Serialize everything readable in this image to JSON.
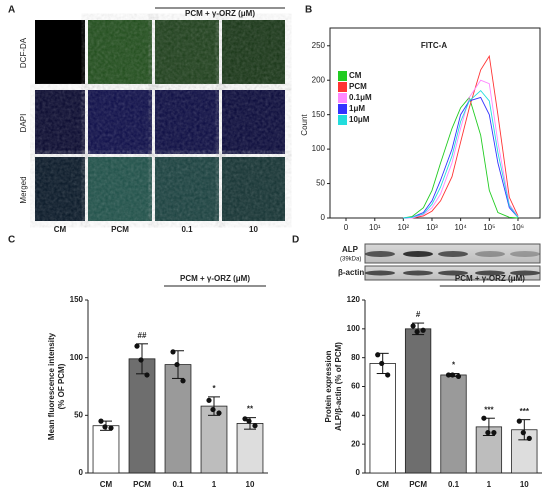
{
  "panels": {
    "labels": [
      "A",
      "B",
      "C",
      "D"
    ]
  },
  "image_panel": {
    "header": "PCM + γ-ORZ (μM)",
    "rows": [
      "DCF-DA",
      "DAPI",
      "Merged"
    ],
    "columns": [
      "CM",
      "PCM",
      "0.1",
      "10"
    ]
  },
  "blot": {
    "rows": [
      {
        "label": "ALP",
        "sublabel": "(39kDa)"
      },
      {
        "label": "β-actin"
      }
    ]
  },
  "chart_data": [
    {
      "type": "line",
      "title": "FITC-A",
      "ylabel": "Count",
      "xscale": "asinh",
      "x": [
        100,
        200,
        500,
        1000,
        2000,
        5000,
        10000,
        20000,
        50000,
        100000,
        200000,
        500000,
        1000000
      ],
      "series": [
        {
          "name": "CM",
          "color": "#22cc22",
          "values": [
            0,
            2,
            15,
            40,
            80,
            130,
            160,
            175,
            120,
            40,
            8,
            1,
            0
          ]
        },
        {
          "name": "PCM",
          "color": "#ff3333",
          "values": [
            0,
            0,
            3,
            10,
            25,
            60,
            110,
            160,
            215,
            235,
            150,
            30,
            3
          ]
        },
        {
          "name": "0.1μM",
          "color": "#ff88ff",
          "values": [
            0,
            0,
            5,
            15,
            35,
            80,
            130,
            175,
            200,
            195,
            110,
            20,
            2
          ]
        },
        {
          "name": "1μM",
          "color": "#3333ff",
          "values": [
            0,
            1,
            8,
            25,
            55,
            100,
            150,
            170,
            175,
            150,
            80,
            15,
            1
          ]
        },
        {
          "name": "10μM",
          "color": "#22dddd",
          "values": [
            0,
            1,
            6,
            20,
            45,
            90,
            140,
            170,
            185,
            170,
            95,
            18,
            1
          ]
        }
      ],
      "xlim": [
        0,
        5000000
      ],
      "xticks": [
        0,
        {
          "value": 10,
          "label": "10¹"
        },
        {
          "value": 100,
          "label": "10²"
        },
        {
          "value": 1000,
          "label": "10³"
        },
        {
          "value": 10000,
          "label": "10⁴"
        },
        {
          "value": 100000,
          "label": "10⁵"
        },
        {
          "value": 1000000,
          "label": "10⁶"
        }
      ],
      "ylim": [
        0,
        270
      ],
      "yticks": [
        0,
        50,
        100,
        150,
        200,
        250
      ],
      "legend": "upper left"
    },
    {
      "type": "bar",
      "ylabel": [
        "Mean fluorescence intensity",
        "(% OF PCM)"
      ],
      "group_label": "PCM + γ-ORZ (μM)",
      "categories": [
        "CM",
        "PCM",
        "0.1",
        "1",
        "10"
      ],
      "values": [
        41,
        99,
        94,
        58,
        43
      ],
      "errors": [
        4,
        13,
        12,
        8,
        5
      ],
      "points": [
        [
          45,
          40,
          39
        ],
        [
          110,
          98,
          85
        ],
        [
          105,
          94,
          80
        ],
        [
          63,
          55,
          52
        ],
        [
          47,
          45,
          41
        ]
      ],
      "annotations": [
        null,
        "##",
        null,
        "*",
        "**"
      ],
      "colors": [
        "#ffffff",
        "#6e6e6e",
        "#9a9a9a",
        "#bdbdbd",
        "#dddddd"
      ],
      "ylim": [
        0,
        150
      ],
      "yticks": [
        0,
        50,
        100,
        150
      ]
    },
    {
      "type": "bar",
      "ylabel": [
        "Protein expression",
        "ALP/β-actin (% of PCM)"
      ],
      "group_label": "PCM + γ-ORZ (μM)",
      "categories": [
        "CM",
        "PCM",
        "0.1",
        "1",
        "10"
      ],
      "values": [
        76,
        100,
        68,
        32,
        30
      ],
      "errors": [
        7,
        4,
        1,
        6,
        7
      ],
      "points": [
        [
          82,
          76,
          68
        ],
        [
          102,
          98,
          99
        ],
        [
          68,
          68,
          67
        ],
        [
          38,
          28,
          28
        ],
        [
          36,
          28,
          24
        ]
      ],
      "annotations": [
        null,
        "#",
        "*",
        "***",
        "***"
      ],
      "colors": [
        "#ffffff",
        "#6e6e6e",
        "#9a9a9a",
        "#bdbdbd",
        "#dddddd"
      ],
      "ylim": [
        0,
        120
      ],
      "yticks": [
        0,
        20,
        40,
        60,
        80,
        100,
        120
      ]
    }
  ]
}
